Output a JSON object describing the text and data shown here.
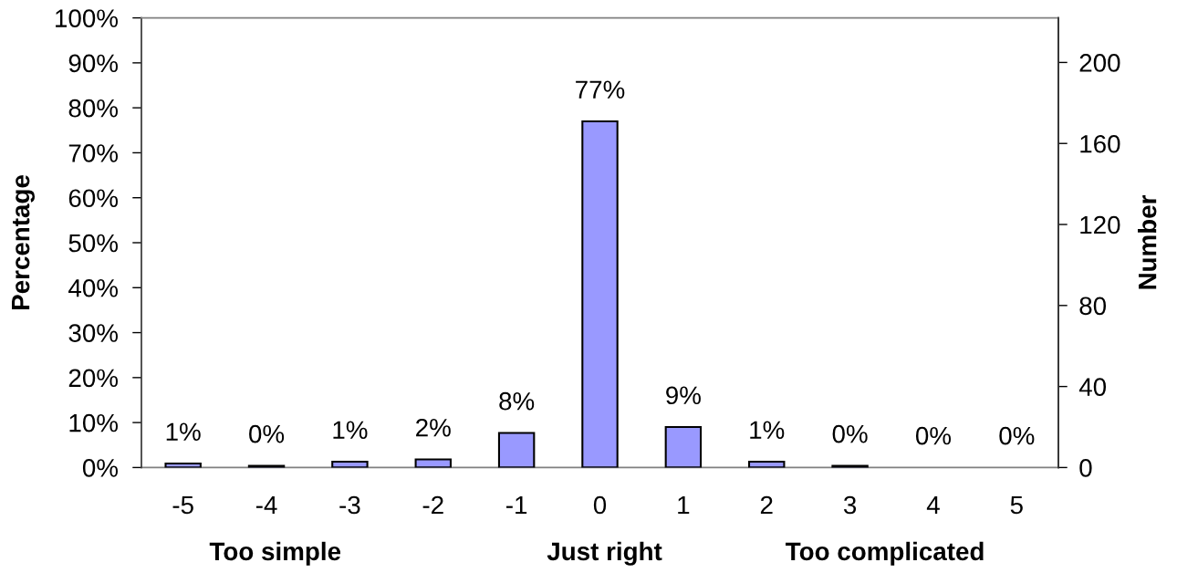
{
  "chart_data": {
    "type": "bar",
    "categories": [
      "-5",
      "-4",
      "-3",
      "-2",
      "-1",
      "0",
      "1",
      "2",
      "3",
      "4",
      "5"
    ],
    "values": [
      0.9,
      0.4,
      1.3,
      1.8,
      7.7,
      77,
      9,
      1.3,
      0.4,
      0,
      0
    ],
    "value_labels": [
      "1%",
      "0%",
      "1%",
      "2%",
      "8%",
      "77%",
      "9%",
      "1%",
      "0%",
      "0%",
      "0%"
    ],
    "color": "#9999ff",
    "ylim": [
      0,
      100
    ],
    "yticks": [
      {
        "value": 0,
        "label": "0%"
      },
      {
        "value": 10,
        "label": "10%"
      },
      {
        "value": 20,
        "label": "20%"
      },
      {
        "value": 30,
        "label": "30%"
      },
      {
        "value": 40,
        "label": "40%"
      },
      {
        "value": 50,
        "label": "50%"
      },
      {
        "value": 60,
        "label": "60%"
      },
      {
        "value": 70,
        "label": "70%"
      },
      {
        "value": 80,
        "label": "80%"
      },
      {
        "value": 90,
        "label": "90%"
      },
      {
        "value": 100,
        "label": "100%"
      }
    ],
    "ylabel": "Percentage",
    "y2label": "Number",
    "y2lim": [
      0,
      222
    ],
    "y2ticks": [
      0,
      40,
      80,
      120,
      160,
      200
    ],
    "annotations": [
      "Too simple",
      "Just right",
      "Too complicated"
    ],
    "grid": false
  }
}
